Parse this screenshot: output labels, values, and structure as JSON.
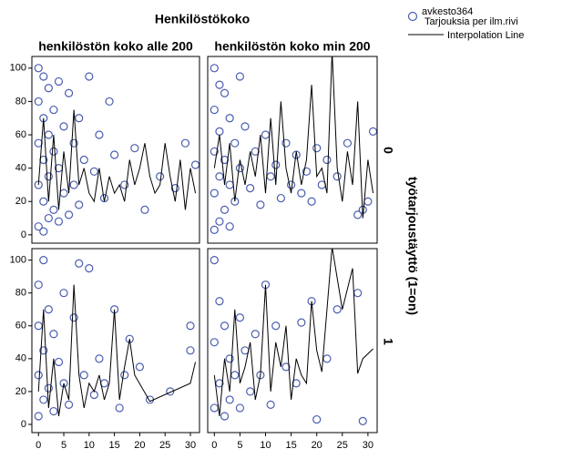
{
  "title": "Henkilöstökoko",
  "column_labels": [
    "henkilöstön koko alle 200",
    "henkilöstön koko min 200"
  ],
  "row_title": "työtarjoustäyttö (1=on)",
  "row_labels": [
    "0",
    "1"
  ],
  "chart_data": [
    {
      "type": "scatter",
      "xlim": [
        -1.3,
        31.8
      ],
      "ylim": [
        -5,
        107
      ],
      "yticks": [
        0,
        20,
        40,
        60,
        80,
        100
      ],
      "series": [
        {
          "name": "avkesto364",
          "subtitle": "Tarjouksia per ilm.rivi",
          "color": "#4a5db0",
          "mode": "markers",
          "x": [
            0,
            0,
            0,
            0,
            0,
            1,
            1,
            1,
            1,
            1,
            2,
            2,
            2,
            2,
            3,
            3,
            3,
            4,
            4,
            4,
            5,
            5,
            6,
            6,
            7,
            7,
            8,
            8,
            9,
            10,
            11,
            12,
            13,
            14,
            15,
            17,
            19,
            21,
            24,
            27,
            29,
            31
          ],
          "values": [
            100,
            80,
            55,
            30,
            5,
            95,
            70,
            45,
            20,
            2,
            88,
            60,
            35,
            10,
            75,
            50,
            15,
            92,
            40,
            8,
            65,
            25,
            85,
            12,
            55,
            30,
            70,
            18,
            45,
            95,
            38,
            60,
            22,
            80,
            48,
            30,
            52,
            15,
            35,
            28,
            55,
            42
          ]
        },
        {
          "name": "Interpolation Line",
          "color": "#000000",
          "mode": "line",
          "x": [
            0,
            1,
            2,
            3,
            4,
            5,
            6,
            7,
            8,
            9,
            10,
            11,
            12,
            13,
            14,
            15,
            16,
            17,
            18,
            19,
            20,
            21,
            22,
            23,
            24,
            25,
            26,
            27,
            28,
            29,
            30,
            31
          ],
          "values": [
            30,
            70,
            20,
            60,
            15,
            50,
            25,
            75,
            30,
            40,
            25,
            20,
            40,
            20,
            35,
            25,
            30,
            20,
            45,
            30,
            40,
            55,
            35,
            25,
            30,
            55,
            35,
            20,
            45,
            15,
            40,
            25
          ]
        }
      ]
    },
    {
      "type": "scatter",
      "xlim": [
        -1.3,
        31.8
      ],
      "ylim": [
        -5,
        107
      ],
      "series": [
        {
          "name": "avkesto364",
          "color": "#4a5db0",
          "mode": "markers",
          "x": [
            0,
            0,
            0,
            0,
            0,
            1,
            1,
            1,
            1,
            2,
            2,
            2,
            3,
            3,
            3,
            4,
            4,
            5,
            5,
            6,
            7,
            8,
            9,
            10,
            11,
            12,
            13,
            14,
            15,
            16,
            17,
            18,
            19,
            20,
            21,
            22,
            24,
            26,
            28,
            29,
            30,
            31
          ],
          "values": [
            100,
            75,
            50,
            25,
            3,
            90,
            62,
            35,
            8,
            85,
            45,
            15,
            70,
            30,
            5,
            55,
            20,
            95,
            40,
            65,
            28,
            50,
            18,
            60,
            35,
            42,
            22,
            55,
            30,
            48,
            25,
            38,
            20,
            52,
            30,
            45,
            35,
            55,
            12,
            15,
            20,
            62
          ]
        },
        {
          "name": "Interpolation Line",
          "color": "#000000",
          "mode": "line",
          "x": [
            0,
            1,
            2,
            3,
            4,
            5,
            6,
            7,
            8,
            9,
            10,
            11,
            12,
            13,
            14,
            15,
            16,
            17,
            18,
            19,
            20,
            21,
            22,
            23,
            24,
            25,
            26,
            27,
            28,
            29,
            30,
            31
          ],
          "values": [
            40,
            60,
            30,
            55,
            20,
            45,
            30,
            50,
            35,
            60,
            25,
            70,
            30,
            80,
            40,
            25,
            50,
            30,
            45,
            90,
            35,
            40,
            25,
            110,
            40,
            20,
            50,
            30,
            80,
            10,
            45,
            25
          ]
        }
      ]
    },
    {
      "type": "scatter",
      "xlim": [
        -1.3,
        31.8
      ],
      "ylim": [
        -5,
        107
      ],
      "xticks": [
        0,
        5,
        10,
        15,
        20,
        25,
        30
      ],
      "yticks": [
        0,
        20,
        40,
        60,
        80,
        100
      ],
      "series": [
        {
          "name": "avkesto364",
          "color": "#4a5db0",
          "mode": "markers",
          "x": [
            0,
            0,
            0,
            0,
            1,
            1,
            1,
            2,
            2,
            3,
            3,
            4,
            5,
            5,
            6,
            7,
            8,
            9,
            10,
            11,
            12,
            13,
            15,
            16,
            17,
            18,
            20,
            22,
            26,
            30,
            30
          ],
          "values": [
            85,
            60,
            30,
            5,
            100,
            45,
            15,
            70,
            22,
            55,
            8,
            38,
            80,
            25,
            12,
            65,
            98,
            30,
            95,
            18,
            40,
            25,
            70,
            10,
            30,
            52,
            35,
            15,
            20,
            60,
            45
          ]
        },
        {
          "name": "Interpolation Line",
          "color": "#000000",
          "mode": "line",
          "x": [
            0,
            1,
            2,
            3,
            4,
            5,
            6,
            7,
            8,
            9,
            10,
            11,
            12,
            13,
            14,
            15,
            16,
            17,
            18,
            19,
            22,
            30,
            31
          ],
          "values": [
            20,
            70,
            10,
            40,
            5,
            25,
            15,
            85,
            30,
            10,
            25,
            20,
            30,
            15,
            25,
            70,
            15,
            35,
            52,
            30,
            14,
            25,
            38
          ]
        }
      ]
    },
    {
      "type": "scatter",
      "xlim": [
        -1.3,
        31.8
      ],
      "ylim": [
        -5,
        107
      ],
      "xticks": [
        0,
        5,
        10,
        15,
        20,
        25,
        30
      ],
      "series": [
        {
          "name": "avkesto364",
          "color": "#4a5db0",
          "mode": "markers",
          "x": [
            0,
            0,
            0,
            1,
            1,
            2,
            2,
            3,
            3,
            4,
            5,
            5,
            6,
            7,
            8,
            9,
            10,
            11,
            12,
            14,
            16,
            17,
            19,
            20,
            22,
            24,
            28,
            29
          ],
          "values": [
            100,
            50,
            10,
            75,
            25,
            60,
            5,
            40,
            15,
            30,
            65,
            10,
            45,
            20,
            55,
            30,
            85,
            12,
            60,
            35,
            25,
            62,
            75,
            3,
            40,
            70,
            80,
            2
          ]
        },
        {
          "name": "Interpolation Line",
          "color": "#000000",
          "mode": "line",
          "x": [
            0,
            1,
            2,
            3,
            4,
            5,
            6,
            7,
            8,
            9,
            10,
            11,
            12,
            13,
            14,
            15,
            16,
            17,
            18,
            19,
            20,
            21,
            23,
            25,
            27,
            28,
            29,
            31
          ],
          "values": [
            30,
            5,
            40,
            20,
            70,
            25,
            35,
            50,
            15,
            30,
            85,
            20,
            50,
            35,
            60,
            15,
            40,
            30,
            25,
            75,
            45,
            32,
            108,
            70,
            95,
            31,
            40,
            46
          ]
        }
      ]
    }
  ]
}
